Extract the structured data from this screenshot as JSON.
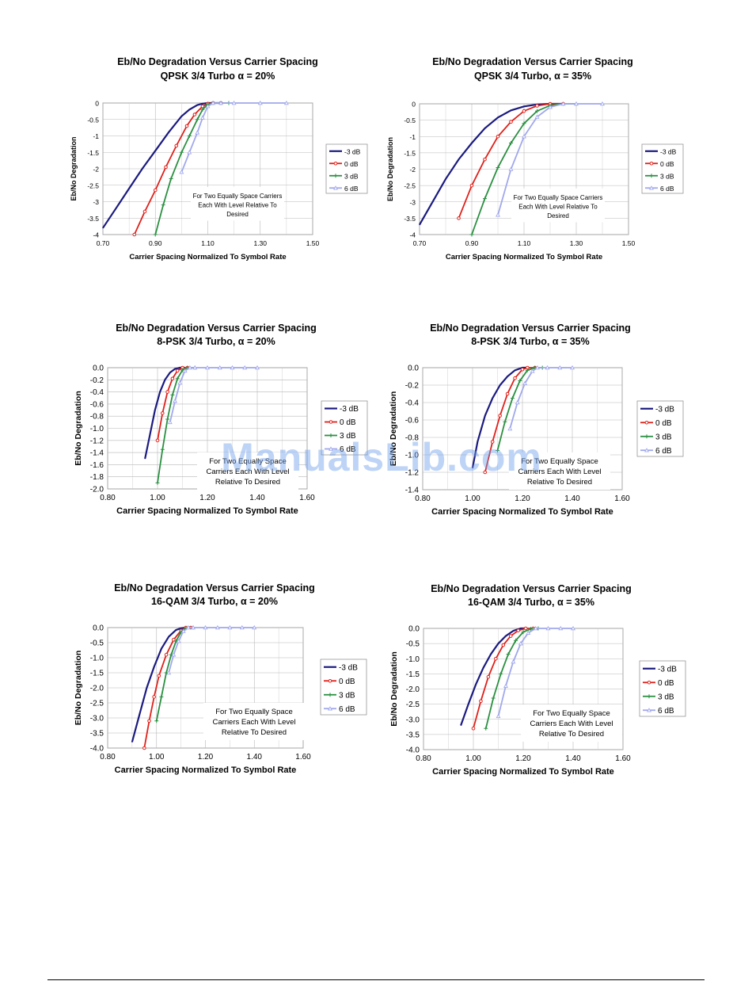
{
  "watermark": "ManualsLib.com",
  "colors": {
    "-3 dB": "#1a1a80",
    "0 dB": "#e0201a",
    "3 dB": "#2a9040",
    "6 dB": "#a0a8ec"
  },
  "chart_data": [
    {
      "type": "line",
      "title": "Eb/No Degradation Versus  Carrier Spacing",
      "subtitle": "QPSK 3/4 Turbo α = 20%",
      "xlabel": "Carrier Spacing Normalized To Symbol Rate",
      "ylabel": "Eb/No Degradation",
      "xlim": [
        0.7,
        1.5
      ],
      "ylim": [
        -4,
        0
      ],
      "xticks": [
        0.7,
        0.9,
        1.1,
        1.3,
        1.5
      ],
      "xtick_labels": [
        "0.70",
        "0.90",
        "1.10",
        "1.30",
        "1.50"
      ],
      "yticks": [
        0,
        -0.5,
        -1,
        -1.5,
        -2,
        -2.5,
        -3,
        -3.5,
        -4
      ],
      "ytick_labels": [
        "0",
        "-0.5",
        "-1",
        "-1.5",
        "-2",
        "-2.5",
        "-3",
        "-3.5",
        "-4"
      ],
      "grid": true,
      "legend": "right",
      "annotation": [
        "For Two Equally Space Carriers",
        "Each With Level Relative To",
        "Desired"
      ],
      "series": [
        {
          "name": "-3 dB",
          "x": [
            0.7,
            0.75,
            0.8,
            0.85,
            0.9,
            0.95,
            1.0,
            1.03,
            1.06,
            1.08,
            1.1,
            1.12,
            1.15
          ],
          "y": [
            -3.8,
            -3.2,
            -2.6,
            -2.0,
            -1.45,
            -0.9,
            -0.4,
            -0.2,
            -0.06,
            -0.02,
            0,
            0,
            0
          ]
        },
        {
          "name": "0 dB",
          "x": [
            0.82,
            0.86,
            0.9,
            0.94,
            0.98,
            1.02,
            1.05,
            1.08,
            1.1,
            1.12,
            1.15
          ],
          "y": [
            -4.0,
            -3.3,
            -2.65,
            -1.95,
            -1.3,
            -0.7,
            -0.35,
            -0.1,
            -0.02,
            0,
            0
          ]
        },
        {
          "name": "3 dB",
          "x": [
            0.9,
            0.93,
            0.96,
            1.0,
            1.03,
            1.06,
            1.08,
            1.1,
            1.12,
            1.15,
            1.18
          ],
          "y": [
            -4.0,
            -3.1,
            -2.3,
            -1.5,
            -1.0,
            -0.5,
            -0.2,
            -0.04,
            0,
            0,
            0
          ]
        },
        {
          "name": "6 dB",
          "x": [
            1.0,
            1.03,
            1.06,
            1.08,
            1.1,
            1.12,
            1.15,
            1.2,
            1.3,
            1.4
          ],
          "y": [
            -2.1,
            -1.5,
            -0.9,
            -0.45,
            -0.1,
            0,
            0,
            0,
            0,
            0
          ]
        }
      ]
    },
    {
      "type": "line",
      "title": "Eb/No Degradation Versus  Carrier Spacing",
      "subtitle": "QPSK 3/4 Turbo, α = 35%",
      "xlabel": "Carrier Spacing Normalized To Symbol Rate",
      "ylabel": "Eb/No Degradation",
      "xlim": [
        0.7,
        1.5
      ],
      "ylim": [
        -4,
        0
      ],
      "xticks": [
        0.7,
        0.9,
        1.1,
        1.3,
        1.5
      ],
      "xtick_labels": [
        "0.70",
        "0.90",
        "1.10",
        "1.30",
        "1.50"
      ],
      "yticks": [
        0,
        -0.5,
        -1,
        -1.5,
        -2,
        -2.5,
        -3,
        -3.5,
        -4
      ],
      "ytick_labels": [
        "0",
        "-0.5",
        "-1",
        "-1.5",
        "-2",
        "-2.5",
        "-3",
        "-3.5",
        "-4"
      ],
      "grid": true,
      "legend": "right",
      "annotation": [
        "For Two Equally Space Carriers",
        "Each With Level Relative To",
        "Desired"
      ],
      "series": [
        {
          "name": "-3 dB",
          "x": [
            0.7,
            0.75,
            0.8,
            0.85,
            0.9,
            0.95,
            1.0,
            1.05,
            1.1,
            1.15,
            1.2,
            1.25
          ],
          "y": [
            -3.7,
            -3.0,
            -2.3,
            -1.7,
            -1.2,
            -0.75,
            -0.42,
            -0.2,
            -0.08,
            -0.02,
            0,
            0
          ]
        },
        {
          "name": "0 dB",
          "x": [
            0.85,
            0.9,
            0.95,
            1.0,
            1.05,
            1.1,
            1.15,
            1.2,
            1.25
          ],
          "y": [
            -3.5,
            -2.5,
            -1.7,
            -1.0,
            -0.55,
            -0.22,
            -0.06,
            0,
            0
          ]
        },
        {
          "name": "3 dB",
          "x": [
            0.9,
            0.95,
            1.0,
            1.05,
            1.1,
            1.15,
            1.2,
            1.25,
            1.3
          ],
          "y": [
            -4.0,
            -2.9,
            -1.95,
            -1.2,
            -0.6,
            -0.22,
            -0.05,
            0,
            0
          ]
        },
        {
          "name": "6 dB",
          "x": [
            1.0,
            1.05,
            1.1,
            1.15,
            1.2,
            1.25,
            1.3,
            1.4
          ],
          "y": [
            -3.4,
            -2.0,
            -1.0,
            -0.4,
            -0.1,
            0,
            0,
            0
          ]
        }
      ]
    },
    {
      "type": "line",
      "title": "Eb/No Degradation Versus  Carrier Spacing",
      "subtitle": "8-PSK 3/4 Turbo, α = 20%",
      "xlabel": "Carrier Spacing Normalized To Symbol Rate",
      "ylabel": "Eb/No Degradation",
      "xlim": [
        0.8,
        1.6
      ],
      "ylim": [
        -2,
        0
      ],
      "xticks": [
        0.8,
        1.0,
        1.2,
        1.4,
        1.6
      ],
      "xtick_labels": [
        "0.80",
        "1.00",
        "1.20",
        "1.40",
        "1.60"
      ],
      "yticks": [
        0,
        -0.2,
        -0.4,
        -0.6,
        -0.8,
        -1.0,
        -1.2,
        -1.4,
        -1.6,
        -1.8,
        -2.0
      ],
      "ytick_labels": [
        "0.0",
        "-0.2",
        "-0.4",
        "-0.6",
        "-0.8",
        "-1.0",
        "-1.2",
        "-1.4",
        "-1.6",
        "-1.8",
        "-2.0"
      ],
      "grid": true,
      "legend": "right",
      "annotation": [
        "For Two Equally Space",
        "Carriers Each With Level",
        "Relative To Desired"
      ],
      "series": [
        {
          "name": "-3 dB",
          "x": [
            0.95,
            0.97,
            0.99,
            1.01,
            1.03,
            1.05,
            1.07,
            1.09,
            1.11
          ],
          "y": [
            -1.5,
            -1.1,
            -0.7,
            -0.4,
            -0.2,
            -0.08,
            -0.02,
            0,
            0
          ]
        },
        {
          "name": "0 dB",
          "x": [
            1.0,
            1.02,
            1.04,
            1.06,
            1.08,
            1.1,
            1.12
          ],
          "y": [
            -1.2,
            -0.75,
            -0.4,
            -0.18,
            -0.05,
            0,
            0
          ]
        },
        {
          "name": "3 dB",
          "x": [
            1.0,
            1.02,
            1.04,
            1.06,
            1.08,
            1.1,
            1.12,
            1.15
          ],
          "y": [
            -1.9,
            -1.35,
            -0.85,
            -0.45,
            -0.18,
            -0.04,
            0,
            0
          ]
        },
        {
          "name": "6 dB",
          "x": [
            1.05,
            1.07,
            1.09,
            1.11,
            1.13,
            1.15,
            1.2,
            1.25,
            1.3,
            1.35,
            1.4
          ],
          "y": [
            -0.9,
            -0.55,
            -0.25,
            -0.05,
            0,
            0,
            0,
            0,
            0,
            0,
            0
          ]
        }
      ]
    },
    {
      "type": "line",
      "title": "Eb/No Degradation Versus  Carrier Spacing",
      "subtitle": "8-PSK 3/4 Turbo, α = 35%",
      "xlabel": "Carrier Spacing Normalized To Symbol Rate",
      "ylabel": "Eb/No Degradation",
      "xlim": [
        0.8,
        1.6
      ],
      "ylim": [
        -1.4,
        0
      ],
      "xticks": [
        0.8,
        1.0,
        1.2,
        1.4,
        1.6
      ],
      "xtick_labels": [
        "0.80",
        "1.00",
        "1.20",
        "1.40",
        "1.60"
      ],
      "yticks": [
        0,
        -0.2,
        -0.4,
        -0.6,
        -0.8,
        -1.0,
        -1.2,
        -1.4
      ],
      "ytick_labels": [
        "0.0",
        "-0.2",
        "-0.4",
        "-0.6",
        "-0.8",
        "-1.0",
        "-1.2",
        "-1.4"
      ],
      "grid": true,
      "legend": "right",
      "annotation": [
        "For Two Equally Space",
        "Carriers Each With Level",
        "Relative To Desired"
      ],
      "series": [
        {
          "name": "-3 dB",
          "x": [
            1.0,
            1.02,
            1.05,
            1.08,
            1.11,
            1.14,
            1.17,
            1.2,
            1.22
          ],
          "y": [
            -1.15,
            -0.85,
            -0.55,
            -0.35,
            -0.2,
            -0.1,
            -0.03,
            0,
            0
          ]
        },
        {
          "name": "0 dB",
          "x": [
            1.05,
            1.08,
            1.11,
            1.14,
            1.17,
            1.2,
            1.22,
            1.25
          ],
          "y": [
            -1.2,
            -0.85,
            -0.55,
            -0.3,
            -0.12,
            -0.02,
            0,
            0
          ]
        },
        {
          "name": "3 dB",
          "x": [
            1.1,
            1.13,
            1.16,
            1.19,
            1.22,
            1.25,
            1.28
          ],
          "y": [
            -0.95,
            -0.62,
            -0.35,
            -0.15,
            -0.03,
            0,
            0
          ]
        },
        {
          "name": "6 dB",
          "x": [
            1.15,
            1.18,
            1.21,
            1.24,
            1.26,
            1.3,
            1.35,
            1.4
          ],
          "y": [
            -0.7,
            -0.4,
            -0.18,
            -0.04,
            0,
            0,
            0,
            0
          ]
        }
      ]
    },
    {
      "type": "line",
      "title": "Eb/No Degradation Versus  Carrier Spacing",
      "subtitle": "16-QAM 3/4 Turbo, α = 20%",
      "xlabel": "Carrier Spacing Normalized To Symbol Rate",
      "ylabel": "Eb/No Degradation",
      "xlim": [
        0.8,
        1.6
      ],
      "ylim": [
        -4,
        0
      ],
      "xticks": [
        0.8,
        1.0,
        1.2,
        1.4,
        1.6
      ],
      "xtick_labels": [
        "0.80",
        "1.00",
        "1.20",
        "1.40",
        "1.60"
      ],
      "yticks": [
        0,
        -0.5,
        -1,
        -1.5,
        -2,
        -2.5,
        -3,
        -3.5,
        -4
      ],
      "ytick_labels": [
        "0.0",
        "-0.5",
        "-1.0",
        "-1.5",
        "-2.0",
        "-2.5",
        "-3.0",
        "-3.5",
        "-4.0"
      ],
      "grid": true,
      "legend": "right",
      "annotation": [
        "For Two Equally Space",
        "Carriers Each With Level",
        "Relative To Desired"
      ],
      "series": [
        {
          "name": "-3 dB",
          "x": [
            0.9,
            0.93,
            0.96,
            0.99,
            1.02,
            1.05,
            1.08,
            1.1,
            1.12
          ],
          "y": [
            -3.8,
            -2.9,
            -2.0,
            -1.3,
            -0.7,
            -0.3,
            -0.08,
            -0.02,
            0
          ]
        },
        {
          "name": "0 dB",
          "x": [
            0.95,
            0.97,
            0.99,
            1.01,
            1.04,
            1.07,
            1.1,
            1.12,
            1.14
          ],
          "y": [
            -4.0,
            -3.1,
            -2.3,
            -1.6,
            -0.9,
            -0.4,
            -0.1,
            0,
            0
          ]
        },
        {
          "name": "3 dB",
          "x": [
            1.0,
            1.02,
            1.04,
            1.06,
            1.08,
            1.1,
            1.12,
            1.15
          ],
          "y": [
            -3.1,
            -2.3,
            -1.5,
            -0.9,
            -0.45,
            -0.15,
            -0.02,
            0
          ]
        },
        {
          "name": "6 dB",
          "x": [
            1.05,
            1.07,
            1.09,
            1.11,
            1.13,
            1.15,
            1.2,
            1.25,
            1.3,
            1.35,
            1.4
          ],
          "y": [
            -1.5,
            -0.9,
            -0.45,
            -0.12,
            0,
            0,
            0,
            0,
            0,
            0,
            0
          ]
        }
      ]
    },
    {
      "type": "line",
      "title": "Eb/No Degradation Versus  Carrier Spacing",
      "subtitle": "16-QAM 3/4 Turbo, α = 35%",
      "xlabel": "Carrier Spacing Normalized To Symbol Rate",
      "ylabel": "Eb/No Degradation",
      "xlim": [
        0.8,
        1.6
      ],
      "ylim": [
        -4,
        0
      ],
      "xticks": [
        0.8,
        1.0,
        1.2,
        1.4,
        1.6
      ],
      "xtick_labels": [
        "0.80",
        "1.00",
        "1.20",
        "1.40",
        "1.60"
      ],
      "yticks": [
        0,
        -0.5,
        -1,
        -1.5,
        -2,
        -2.5,
        -3,
        -3.5,
        -4
      ],
      "ytick_labels": [
        "0.0",
        "-0.5",
        "-1.0",
        "-1.5",
        "-2.0",
        "-2.5",
        "-3.0",
        "-3.5",
        "-4.0"
      ],
      "grid": true,
      "legend": "right",
      "annotation": [
        "For Two Equally Space",
        "Carriers Each With Level",
        "Relative To Desired"
      ],
      "series": [
        {
          "name": "-3 dB",
          "x": [
            0.95,
            0.98,
            1.01,
            1.04,
            1.07,
            1.1,
            1.13,
            1.16,
            1.19,
            1.21
          ],
          "y": [
            -3.2,
            -2.5,
            -1.85,
            -1.3,
            -0.85,
            -0.5,
            -0.25,
            -0.08,
            0,
            0
          ]
        },
        {
          "name": "0 dB",
          "x": [
            1.0,
            1.03,
            1.06,
            1.09,
            1.12,
            1.15,
            1.18,
            1.21,
            1.24
          ],
          "y": [
            -3.3,
            -2.4,
            -1.6,
            -1.0,
            -0.55,
            -0.25,
            -0.07,
            0,
            0
          ]
        },
        {
          "name": "3 dB",
          "x": [
            1.05,
            1.08,
            1.11,
            1.14,
            1.17,
            1.2,
            1.23,
            1.26
          ],
          "y": [
            -3.3,
            -2.3,
            -1.5,
            -0.85,
            -0.4,
            -0.12,
            -0.02,
            0
          ]
        },
        {
          "name": "6 dB",
          "x": [
            1.1,
            1.13,
            1.16,
            1.19,
            1.22,
            1.25,
            1.3,
            1.35,
            1.4
          ],
          "y": [
            -2.9,
            -1.9,
            -1.1,
            -0.5,
            -0.15,
            0,
            0,
            0,
            0
          ]
        }
      ]
    }
  ]
}
